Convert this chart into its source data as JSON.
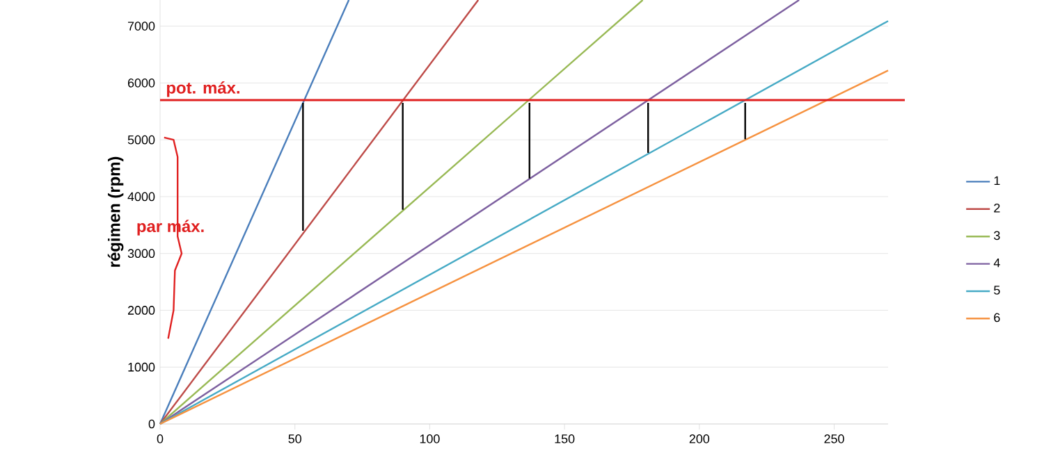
{
  "chart_data": {
    "type": "line",
    "ylabel": "régimen (rpm)",
    "xlim": [
      0,
      270
    ],
    "ylim": [
      0,
      7460
    ],
    "xticks": [
      0,
      50,
      100,
      150,
      200,
      250
    ],
    "yticks": [
      0,
      1000,
      2000,
      3000,
      4000,
      5000,
      6000,
      7000
    ],
    "grid": "y",
    "legend": "right",
    "marker": "none",
    "line_style": "solid",
    "series": [
      {
        "name": "1",
        "color": "#4a7ebb",
        "x": [
          0,
          70
        ],
        "values": [
          0,
          7460
        ]
      },
      {
        "name": "2",
        "color": "#be4b48",
        "x": [
          0,
          118
        ],
        "values": [
          0,
          7460
        ]
      },
      {
        "name": "3",
        "color": "#98b954",
        "x": [
          0,
          179
        ],
        "values": [
          0,
          7460
        ]
      },
      {
        "name": "4",
        "color": "#7d60a0",
        "x": [
          0,
          237
        ],
        "values": [
          0,
          7460
        ]
      },
      {
        "name": "5",
        "color": "#46aac5",
        "x": [
          0,
          270
        ],
        "values": [
          0,
          7090
        ]
      },
      {
        "name": "6",
        "color": "#f69240",
        "x": [
          0,
          270
        ],
        "values": [
          0,
          6220
        ]
      },
      {
        "color": "#000000",
        "x": [
          53,
          53
        ],
        "values": [
          5650,
          3400
        ]
      },
      {
        "color": "#000000",
        "x": [
          90,
          90
        ],
        "values": [
          5650,
          3770
        ]
      },
      {
        "color": "#000000",
        "x": [
          137,
          137
        ],
        "values": [
          5650,
          4320
        ]
      },
      {
        "color": "#000000",
        "x": [
          181,
          181
        ],
        "values": [
          5650,
          4770
        ]
      },
      {
        "color": "#000000",
        "x": [
          217,
          217
        ],
        "values": [
          5650,
          5010
        ]
      },
      {
        "color": "#e02020",
        "x": [
          1.5,
          5,
          6.5,
          6.5,
          8,
          5.5,
          5,
          3
        ],
        "values": [
          5040,
          5000,
          4700,
          3300,
          3000,
          2700,
          2000,
          1500
        ]
      }
    ],
    "ref_lines": [
      {
        "axis": "y",
        "value": 5700,
        "label": "pot. máx.",
        "color": "#e02020"
      }
    ],
    "annotations": [
      "par máx."
    ]
  }
}
